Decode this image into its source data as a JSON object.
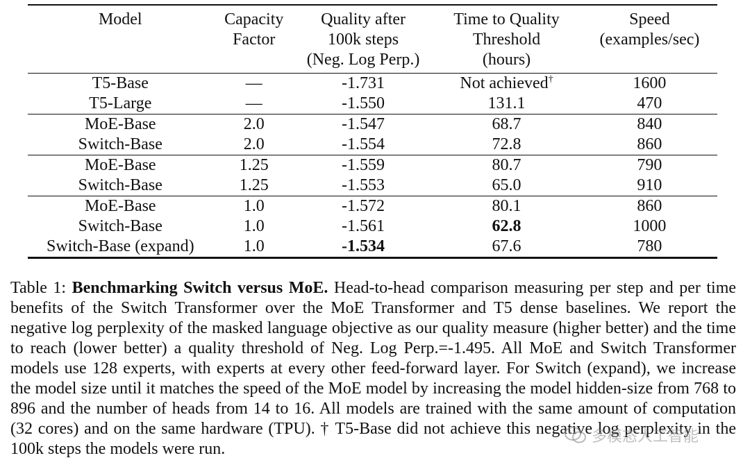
{
  "table": {
    "headers": [
      [
        "Model"
      ],
      [
        "Capacity",
        "Factor"
      ],
      [
        "Quality after",
        "100k steps",
        "(Neg. Log Perp.)"
      ],
      [
        "Time to Quality",
        "Threshold",
        "(hours)"
      ],
      [
        "Speed",
        "(examples/sec)"
      ]
    ],
    "groups": [
      [
        {
          "model": "T5-Base",
          "capacity": "—",
          "quality": "-1.731",
          "time": "Not achieved",
          "time_sup": "†",
          "speed": "1600"
        },
        {
          "model": "T5-Large",
          "capacity": "—",
          "quality": "-1.550",
          "time": "131.1",
          "speed": "470"
        }
      ],
      [
        {
          "model": "MoE-Base",
          "capacity": "2.0",
          "quality": "-1.547",
          "time": "68.7",
          "speed": "840"
        },
        {
          "model": "Switch-Base",
          "capacity": "2.0",
          "quality": "-1.554",
          "time": "72.8",
          "speed": "860"
        }
      ],
      [
        {
          "model": "MoE-Base",
          "capacity": "1.25",
          "quality": "-1.559",
          "time": "80.7",
          "speed": "790"
        },
        {
          "model": "Switch-Base",
          "capacity": "1.25",
          "quality": "-1.553",
          "time": "65.0",
          "speed": "910"
        }
      ],
      [
        {
          "model": "MoE-Base",
          "capacity": "1.0",
          "quality": "-1.572",
          "time": "80.1",
          "speed": "860"
        },
        {
          "model": "Switch-Base",
          "capacity": "1.0",
          "quality": "-1.561",
          "time": "62.8",
          "time_bold": true,
          "speed": "1000"
        },
        {
          "model": "Switch-Base (expand)",
          "capacity": "1.0",
          "quality": "-1.534",
          "quality_bold": true,
          "time": "67.6",
          "speed": "780"
        }
      ]
    ]
  },
  "caption": {
    "label": "Table 1:",
    "title": "Benchmarking Switch versus MoE.",
    "body": "Head-to-head comparison measuring per step and per time benefits of the Switch Transformer over the MoE Transformer and T5 dense baselines. We report the negative log perplexity of the masked language objective as our quality measure (higher better) and the time to reach (lower better) a quality threshold of Neg. Log Perp.=-1.495. All MoE and Switch Transformer models use 128 experts, with experts at every other feed-forward layer. For Switch (expand), we increase the model size until it matches the speed of the MoE model by increasing the model hidden-size from 768 to 896 and the number of heads from 14 to 16. All models are trained with the same amount of computation (32 cores) and on the same hardware (TPU). † T5-Base did not achieve this negative log perplexity in the 100k steps the models were run."
  },
  "watermark": {
    "text": "多模态人工智能",
    "icon": "wechat-icon"
  }
}
